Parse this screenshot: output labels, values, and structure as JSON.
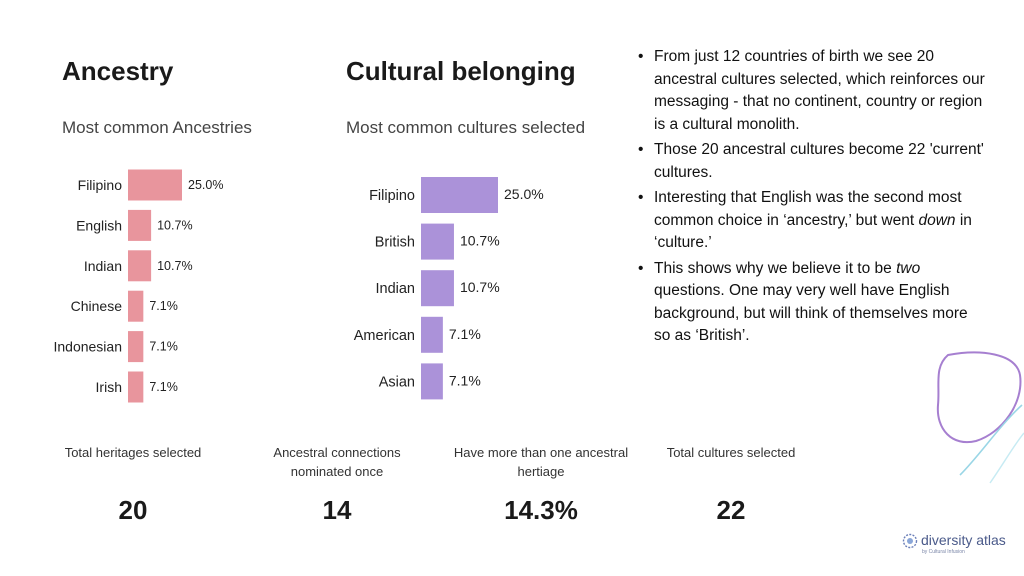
{
  "ancestry": {
    "title": "Ancestry",
    "subtitle": "Most common Ancestries"
  },
  "culture": {
    "title": "Cultural belonging",
    "subtitle": "Most common cultures selected"
  },
  "chart_data": [
    {
      "type": "bar",
      "orientation": "horizontal",
      "title": "Most common Ancestries",
      "categories": [
        "Filipino",
        "English",
        "Indian",
        "Chinese",
        "Indonesian",
        "Irish"
      ],
      "values": [
        25.0,
        10.7,
        10.7,
        7.1,
        7.1,
        7.1
      ],
      "labels": [
        "25.0%",
        "10.7%",
        "10.7%",
        "7.1%",
        "7.1%",
        "7.1%"
      ],
      "color": "#e8959d",
      "grid": false,
      "legend": "none"
    },
    {
      "type": "bar",
      "orientation": "horizontal",
      "title": "Most common cultures selected",
      "categories": [
        "Filipino",
        "British",
        "Indian",
        "American",
        "Asian"
      ],
      "values": [
        25.0,
        10.7,
        10.7,
        7.1,
        7.1
      ],
      "labels": [
        "25.0%",
        "10.7%",
        "10.7%",
        "7.1%",
        "7.1%"
      ],
      "color": "#ab92d9",
      "grid": false,
      "legend": "none"
    }
  ],
  "bullets": [
    "From just 12 countries of birth we see 20 ancestral cultures selected, which reinforces our messaging - that no continent, country or region is a cultural monolith.",
    "Those 20 ancestral cultures become 22 'current' cultures.",
    "Interesting that English was the second most common choice in ‘ancestry,’ but went down in ‘culture.’",
    "This shows why we believe it to be two questions. One may very well have English background, but will think of themselves more so as ‘British’."
  ],
  "stats": [
    {
      "label": "Total heritages selected",
      "value": "20"
    },
    {
      "label": "Ancestral connections nominated once",
      "value": "14"
    },
    {
      "label": "Have more than one ancestral hertiage",
      "value": "14.3%"
    },
    {
      "label": "Total cultures selected",
      "value": "22"
    }
  ],
  "logo": {
    "name": "diversity atlas",
    "tagline": "by Cultural Infusion",
    "icon": "globe-logo-icon"
  },
  "colors": {
    "ancestry_bar": "#e8959d",
    "culture_bar": "#ab92d9",
    "decor_purple": "#a67fd0",
    "decor_teal": "#9ad6e6",
    "logo_blue": "#4a5a8a"
  }
}
